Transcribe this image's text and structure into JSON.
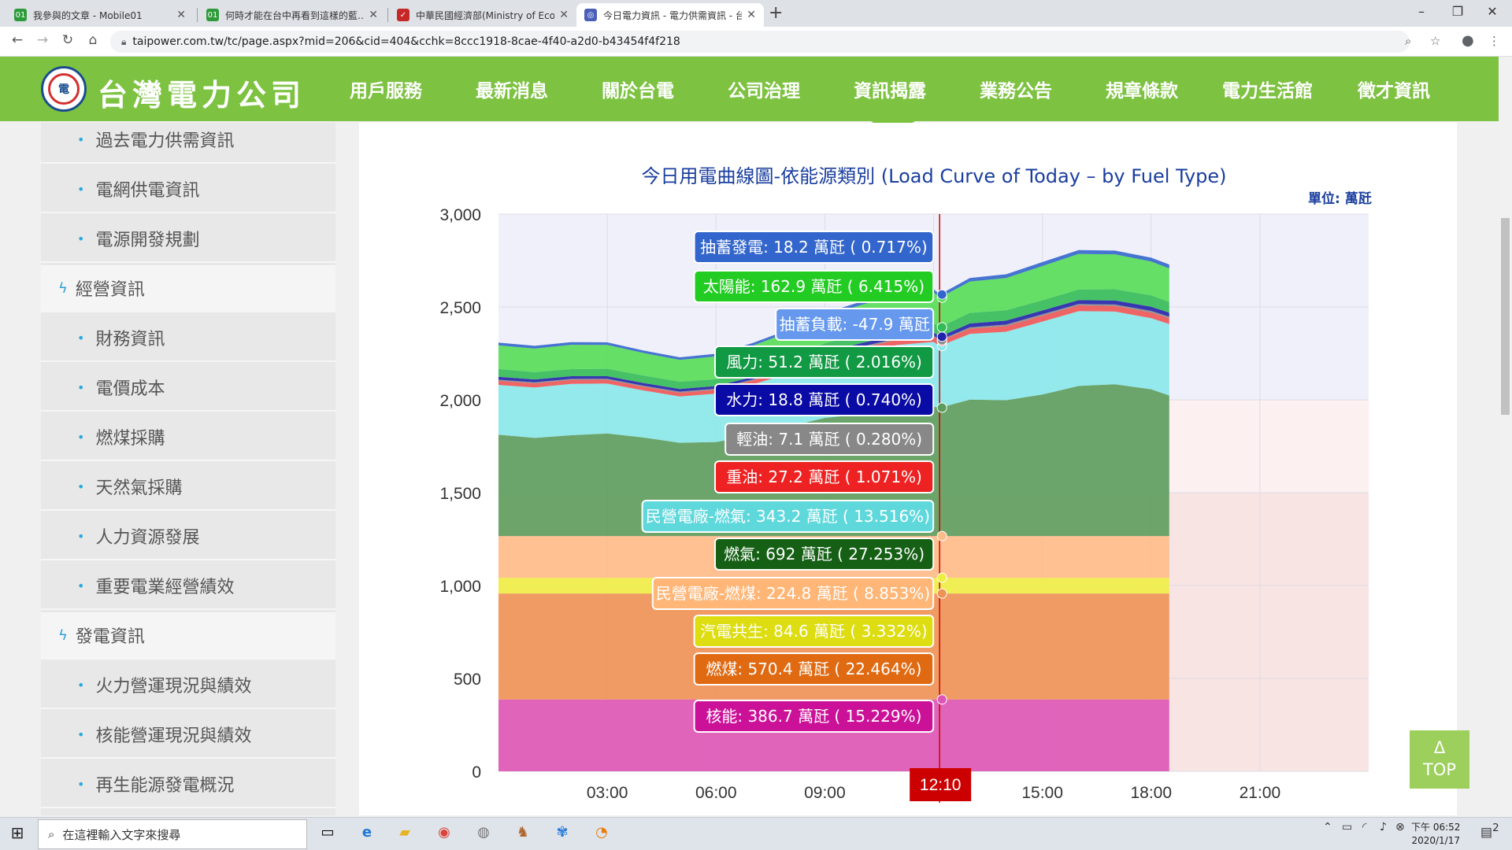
{
  "browser": {
    "tabs": [
      {
        "title": "我參與的文章 - Mobile01",
        "favicon_color": "#2e9b3a",
        "favicon_glyph": "01"
      },
      {
        "title": "何時才能在台中再看到這樣的藍…",
        "favicon_color": "#2e9b3a",
        "favicon_glyph": "01"
      },
      {
        "title": "中華民國經濟部(Ministry of Eco",
        "favicon_color": "#c62828",
        "favicon_glyph": "✓"
      },
      {
        "title": "今日電力資訊 - 電力供需資訊 - 台",
        "favicon_color": "#4a5fb8",
        "favicon_glyph": "◎"
      }
    ],
    "url": "taipower.com.tw/tc/page.aspx?mid=206&cid=404&cchk=8ccc1918-8cae-4f40-a2d0-b43454f4f218"
  },
  "site": {
    "brand": "台灣電力公司",
    "logo_text": "電",
    "menu": [
      "用戶服務",
      "最新消息",
      "關於台電",
      "公司治理",
      "資訊揭露",
      "業務公告",
      "規章條款",
      "電力生活館",
      "徵才資訊"
    ]
  },
  "sidebar": [
    {
      "type": "sub",
      "label": "過去電力供需資訊"
    },
    {
      "type": "sub",
      "label": "電網供電資訊"
    },
    {
      "type": "sub",
      "label": "電源開發規劃"
    },
    {
      "type": "cat",
      "label": "經營資訊"
    },
    {
      "type": "sub",
      "label": "財務資訊"
    },
    {
      "type": "sub",
      "label": "電價成本"
    },
    {
      "type": "sub",
      "label": "燃煤採購"
    },
    {
      "type": "sub",
      "label": "天然氣採購"
    },
    {
      "type": "sub",
      "label": "人力資源發展"
    },
    {
      "type": "sub",
      "label": "重要電業經營績效"
    },
    {
      "type": "cat",
      "label": "發電資訊"
    },
    {
      "type": "sub",
      "label": "火力營運現況與績效"
    },
    {
      "type": "sub",
      "label": "核能營運現況與績效"
    },
    {
      "type": "sub",
      "label": "再生能源發電概況"
    }
  ],
  "chart_data": {
    "type": "area",
    "title": "今日用電曲線圖-依能源類別 (Load Curve of Today – by Fuel Type)",
    "unit_label": "單位: 萬瓩",
    "ylim": [
      0,
      3000
    ],
    "yticks": [
      "0",
      "500",
      "1,000",
      "1,500",
      "2,000",
      "2,500",
      "3,000"
    ],
    "xticks": [
      "03:00",
      "06:00",
      "09:00",
      "15:00",
      "18:00",
      "21:00"
    ],
    "x_domain_hours": [
      0,
      24
    ],
    "data_end_hour": 18.5,
    "cursor_time": "12:10",
    "cursor_hour": 12.1667,
    "x_hours": [
      0,
      1,
      2,
      3,
      4,
      5,
      6,
      7,
      8,
      9,
      10,
      11,
      12,
      12.17,
      13,
      14,
      15,
      16,
      17,
      18,
      18.5
    ],
    "total": [
      2340,
      2310,
      2290,
      2280,
      2270,
      2260,
      2260,
      2280,
      2350,
      2480,
      2570,
      2590,
      2560,
      2540,
      2680,
      2720,
      2740,
      2760,
      2780,
      2800,
      2770
    ],
    "series": [
      {
        "name": "核能",
        "color": "#dd55b5",
        "values": [
          386.7
        ]
      },
      {
        "name": "燃煤",
        "color": "#ee9255",
        "values": [
          570.4
        ]
      },
      {
        "name": "汽電共生",
        "color": "#eeee44",
        "values": [
          84.6
        ]
      },
      {
        "name": "民營電廠-燃煤",
        "color": "#ffbb88",
        "values": [
          224.8
        ]
      },
      {
        "name": "燃氣",
        "color": "#5c9c5c",
        "values": [
          692
        ]
      },
      {
        "name": "民營電廠-燃氣",
        "color": "#88e8ea",
        "values": [
          343.2
        ]
      },
      {
        "name": "重油",
        "color": "#ee5555",
        "values": [
          27.2
        ]
      },
      {
        "name": "輕油",
        "color": "#888888",
        "values": [
          7.1
        ]
      },
      {
        "name": "水力",
        "color": "#2222aa",
        "values": [
          18.8
        ]
      },
      {
        "name": "風力",
        "color": "#33bb55",
        "values": [
          51.2
        ]
      },
      {
        "name": "抽蓄負載",
        "color": "#6699ee",
        "values": [
          -47.9
        ]
      },
      {
        "name": "太陽能",
        "color": "#55dd55",
        "values": [
          162.9
        ]
      },
      {
        "name": "抽蓄發電",
        "color": "#3366cc",
        "values": [
          18.2
        ]
      }
    ],
    "tooltips": [
      {
        "text": "抽蓄發電: 18.2 萬瓩 ( 0.717%)",
        "bg": "#3366cc",
        "fg": "#ffffff"
      },
      {
        "text": "太陽能: 162.9 萬瓩 ( 6.415%)",
        "bg": "#22cc22",
        "fg": "#ffffff"
      },
      {
        "text": "抽蓄負載: -47.9 萬瓩",
        "bg": "#6699ee",
        "fg": "#ffffff"
      },
      {
        "text": "風力: 51.2 萬瓩 ( 2.016%)",
        "bg": "#119944",
        "fg": "#ffffff"
      },
      {
        "text": "水力: 18.8 萬瓩 ( 0.740%)",
        "bg": "#0a0aa5",
        "fg": "#ffffff"
      },
      {
        "text": "輕油: 7.1 萬瓩 ( 0.280%)",
        "bg": "#888888",
        "fg": "#ffffff"
      },
      {
        "text": "重油: 27.2 萬瓩 ( 1.071%)",
        "bg": "#ee2222",
        "fg": "#ffffff"
      },
      {
        "text": "民營電廠-燃氣: 343.2 萬瓩 ( 13.516%)",
        "bg": "#5fd8dc",
        "fg": "#ffffff"
      },
      {
        "text": "燃氣: 692 萬瓩 ( 27.253%)",
        "bg": "#156015",
        "fg": "#ffffff"
      },
      {
        "text": "民營電廠-燃煤: 224.8 萬瓩 ( 8.853%)",
        "bg": "#ffb677",
        "fg": "#ffffff"
      },
      {
        "text": "汽電共生: 84.6 萬瓩 ( 3.332%)",
        "bg": "#dddd11",
        "fg": "#ffffff"
      },
      {
        "text": "燃煤: 570.4 萬瓩 ( 22.464%)",
        "bg": "#e06a12",
        "fg": "#ffffff"
      },
      {
        "text": "核能: 386.7 萬瓩 ( 15.229%)",
        "bg": "#cc1199",
        "fg": "#ffffff"
      }
    ]
  },
  "top_button": {
    "arrow": "Δ",
    "label": "TOP"
  },
  "taskbar": {
    "search_placeholder": "在這裡輸入文字來搜尋",
    "clock_line1": "下午 06:52",
    "clock_line2": "2020/1/17",
    "notifications": "2"
  }
}
